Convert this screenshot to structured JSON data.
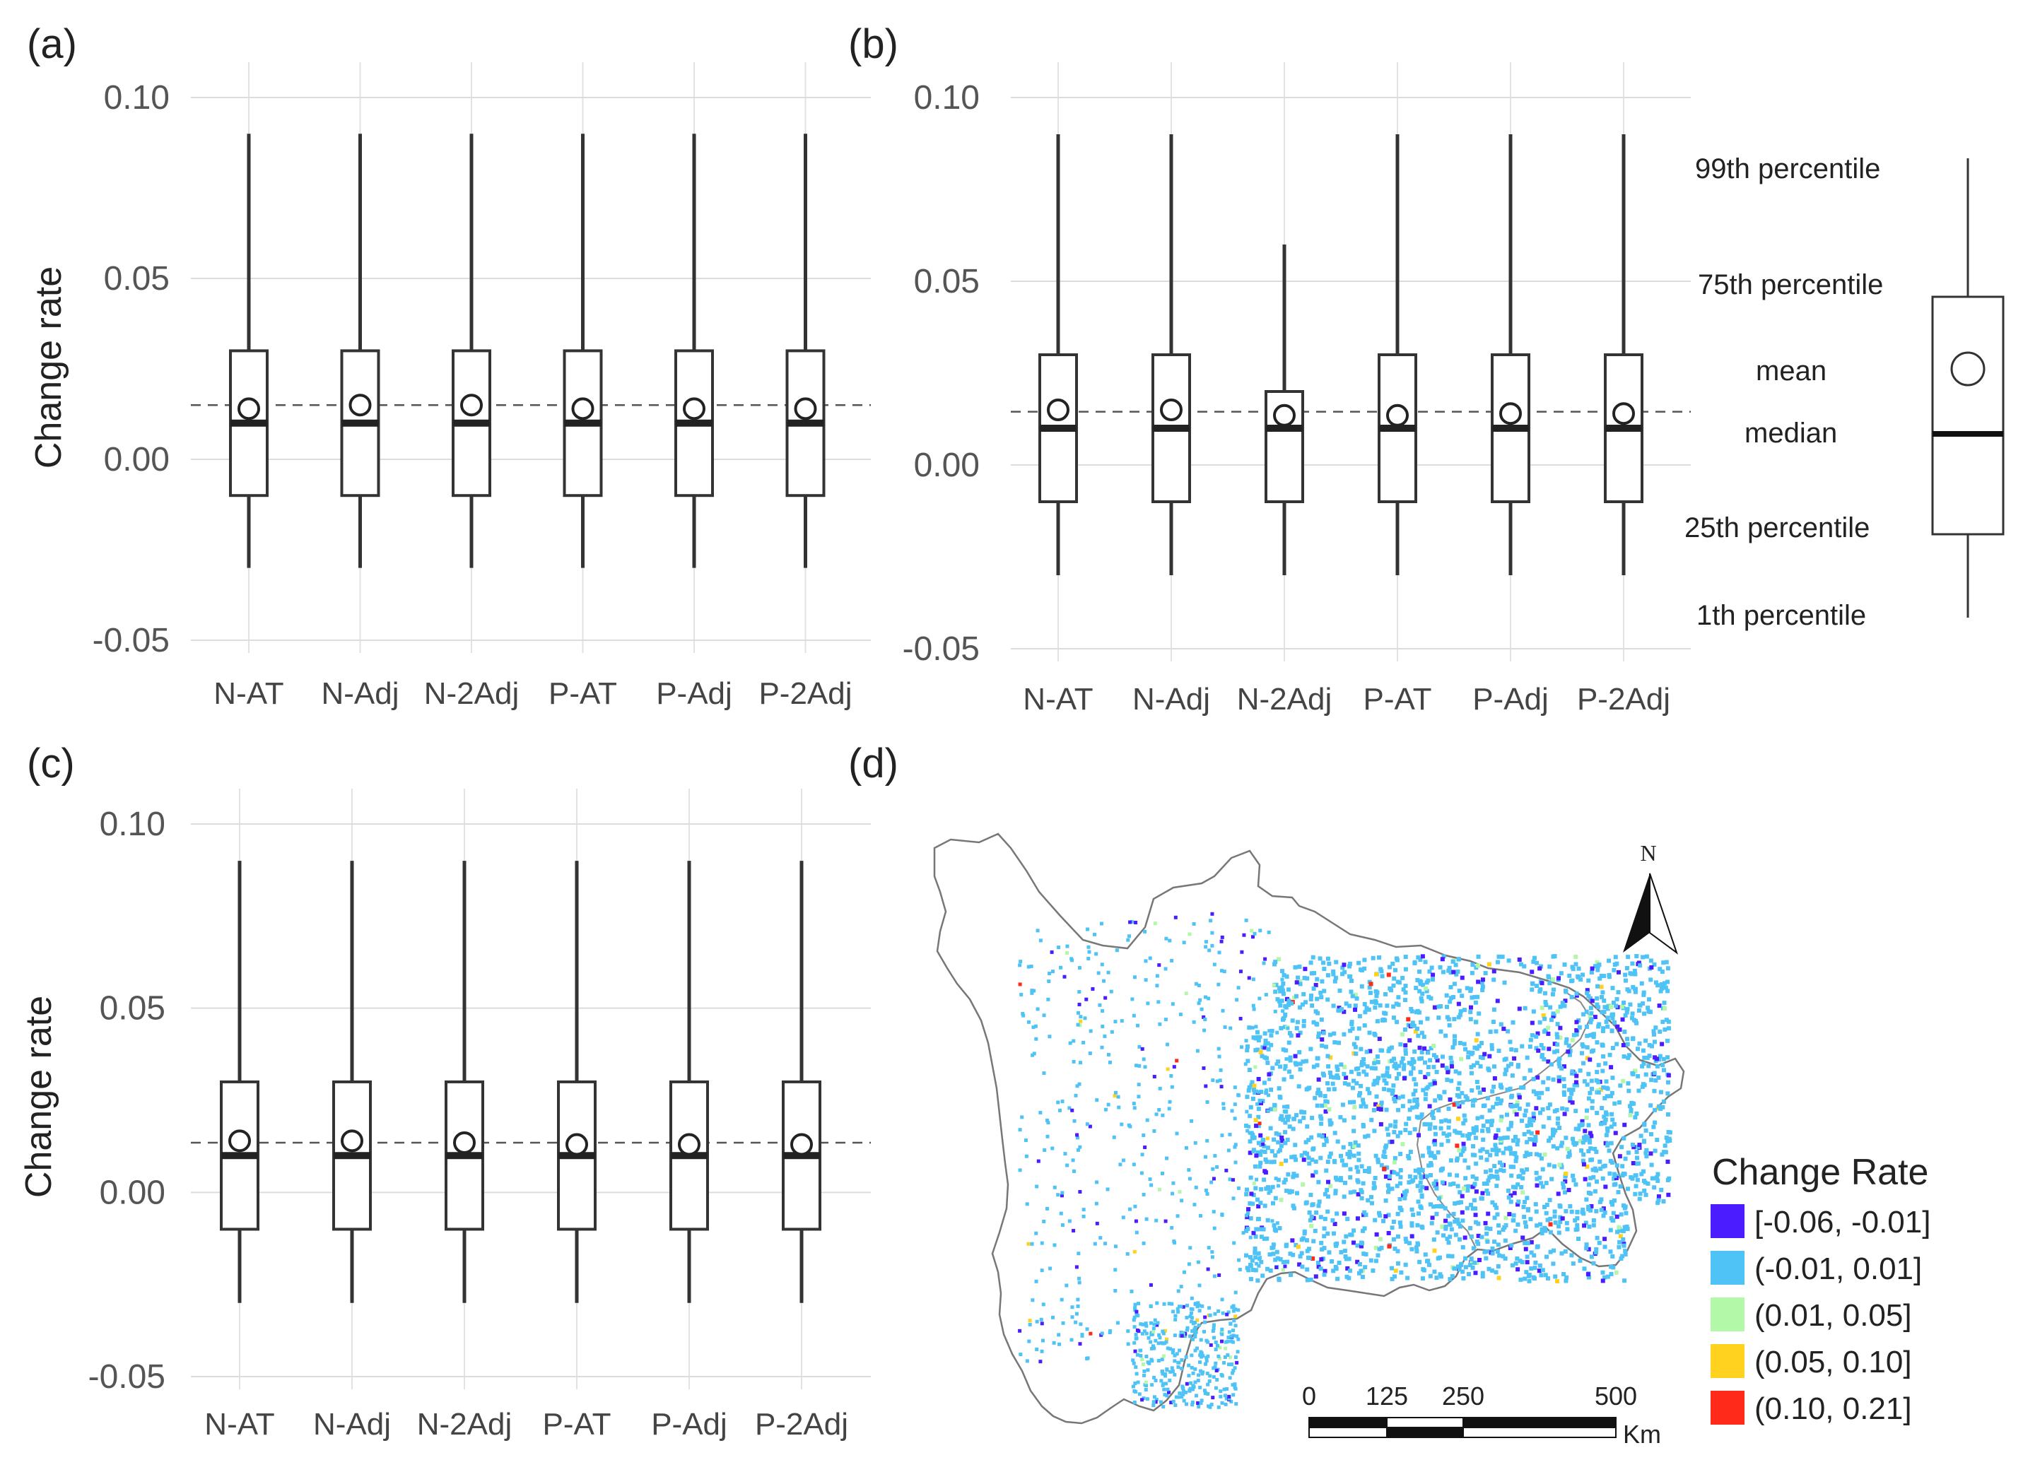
{
  "chart_data": [
    {
      "panel": "(a)",
      "type": "box",
      "ylabel": "Change rate",
      "ylim": [
        -0.06,
        0.11
      ],
      "yticks": [
        "0.10",
        "0.05",
        "0.00",
        "-0.05"
      ],
      "grid": true,
      "reference_line": 0.015,
      "categories": [
        "N-AT",
        "N-Adj",
        "N-2Adj",
        "P-AT",
        "P-Adj",
        "P-2Adj"
      ],
      "boxes": [
        {
          "p1": -0.03,
          "q1": -0.01,
          "median": 0.01,
          "mean": 0.014,
          "q3": 0.03,
          "p99": 0.09
        },
        {
          "p1": -0.03,
          "q1": -0.01,
          "median": 0.01,
          "mean": 0.015,
          "q3": 0.03,
          "p99": 0.09
        },
        {
          "p1": -0.03,
          "q1": -0.01,
          "median": 0.01,
          "mean": 0.015,
          "q3": 0.03,
          "p99": 0.09
        },
        {
          "p1": -0.03,
          "q1": -0.01,
          "median": 0.01,
          "mean": 0.014,
          "q3": 0.03,
          "p99": 0.09
        },
        {
          "p1": -0.03,
          "q1": -0.01,
          "median": 0.01,
          "mean": 0.014,
          "q3": 0.03,
          "p99": 0.09
        },
        {
          "p1": -0.03,
          "q1": -0.01,
          "median": 0.01,
          "mean": 0.014,
          "q3": 0.03,
          "p99": 0.09
        }
      ]
    },
    {
      "panel": "(b)",
      "type": "box",
      "ylabel": "",
      "ylim": [
        -0.06,
        0.11
      ],
      "yticks": [
        "0.10",
        "0.05",
        "0.00",
        "-0.05"
      ],
      "grid": true,
      "reference_line": 0.0145,
      "categories": [
        "N-AT",
        "N-Adj",
        "N-2Adj",
        "P-AT",
        "P-Adj",
        "P-2Adj"
      ],
      "boxes": [
        {
          "p1": -0.03,
          "q1": -0.01,
          "median": 0.01,
          "mean": 0.015,
          "q3": 0.03,
          "p99": 0.09
        },
        {
          "p1": -0.03,
          "q1": -0.01,
          "median": 0.01,
          "mean": 0.015,
          "q3": 0.03,
          "p99": 0.09
        },
        {
          "p1": -0.03,
          "q1": -0.01,
          "median": 0.01,
          "mean": 0.0135,
          "q3": 0.02,
          "p99": 0.06
        },
        {
          "p1": -0.03,
          "q1": -0.01,
          "median": 0.01,
          "mean": 0.0135,
          "q3": 0.03,
          "p99": 0.09
        },
        {
          "p1": -0.03,
          "q1": -0.01,
          "median": 0.01,
          "mean": 0.014,
          "q3": 0.03,
          "p99": 0.09
        },
        {
          "p1": -0.03,
          "q1": -0.01,
          "median": 0.01,
          "mean": 0.014,
          "q3": 0.03,
          "p99": 0.09
        }
      ]
    },
    {
      "panel": "(c)",
      "type": "box",
      "ylabel": "Change rate",
      "ylim": [
        -0.06,
        0.11
      ],
      "yticks": [
        "0.10",
        "0.05",
        "0.00",
        "-0.05"
      ],
      "grid": true,
      "reference_line": 0.0135,
      "categories": [
        "N-AT",
        "N-Adj",
        "N-2Adj",
        "P-AT",
        "P-Adj",
        "P-2Adj"
      ],
      "boxes": [
        {
          "p1": -0.03,
          "q1": -0.01,
          "median": 0.01,
          "mean": 0.014,
          "q3": 0.03,
          "p99": 0.09
        },
        {
          "p1": -0.03,
          "q1": -0.01,
          "median": 0.01,
          "mean": 0.014,
          "q3": 0.03,
          "p99": 0.09
        },
        {
          "p1": -0.03,
          "q1": -0.01,
          "median": 0.01,
          "mean": 0.0135,
          "q3": 0.03,
          "p99": 0.09
        },
        {
          "p1": -0.03,
          "q1": -0.01,
          "median": 0.01,
          "mean": 0.013,
          "q3": 0.03,
          "p99": 0.09
        },
        {
          "p1": -0.03,
          "q1": -0.01,
          "median": 0.01,
          "mean": 0.013,
          "q3": 0.03,
          "p99": 0.09
        },
        {
          "p1": -0.03,
          "q1": -0.01,
          "median": 0.01,
          "mean": 0.013,
          "q3": 0.03,
          "p99": 0.09
        }
      ]
    }
  ],
  "box_key": {
    "labels": [
      "99th percentile",
      "75th percentile",
      "mean",
      "median",
      "25th percentile",
      "1th percentile"
    ]
  },
  "map_panel": {
    "label": "(d)",
    "north_label": "N",
    "legend_title": "Change Rate",
    "legend": [
      {
        "label": "[-0.06, -0.01]",
        "color": "#4b1cff"
      },
      {
        "label": "(-0.01, 0.01]",
        "color": "#4fc3f5"
      },
      {
        "label": "(0.01, 0.05]",
        "color": "#b3f7a8"
      },
      {
        "label": "(0.05, 0.10]",
        "color": "#ffd21f"
      },
      {
        "label": "(0.10, 0.21]",
        "color": "#ff2a1a"
      }
    ],
    "scale_ticks": [
      "0",
      "125",
      "250",
      "500"
    ],
    "scale_unit": "Km"
  }
}
